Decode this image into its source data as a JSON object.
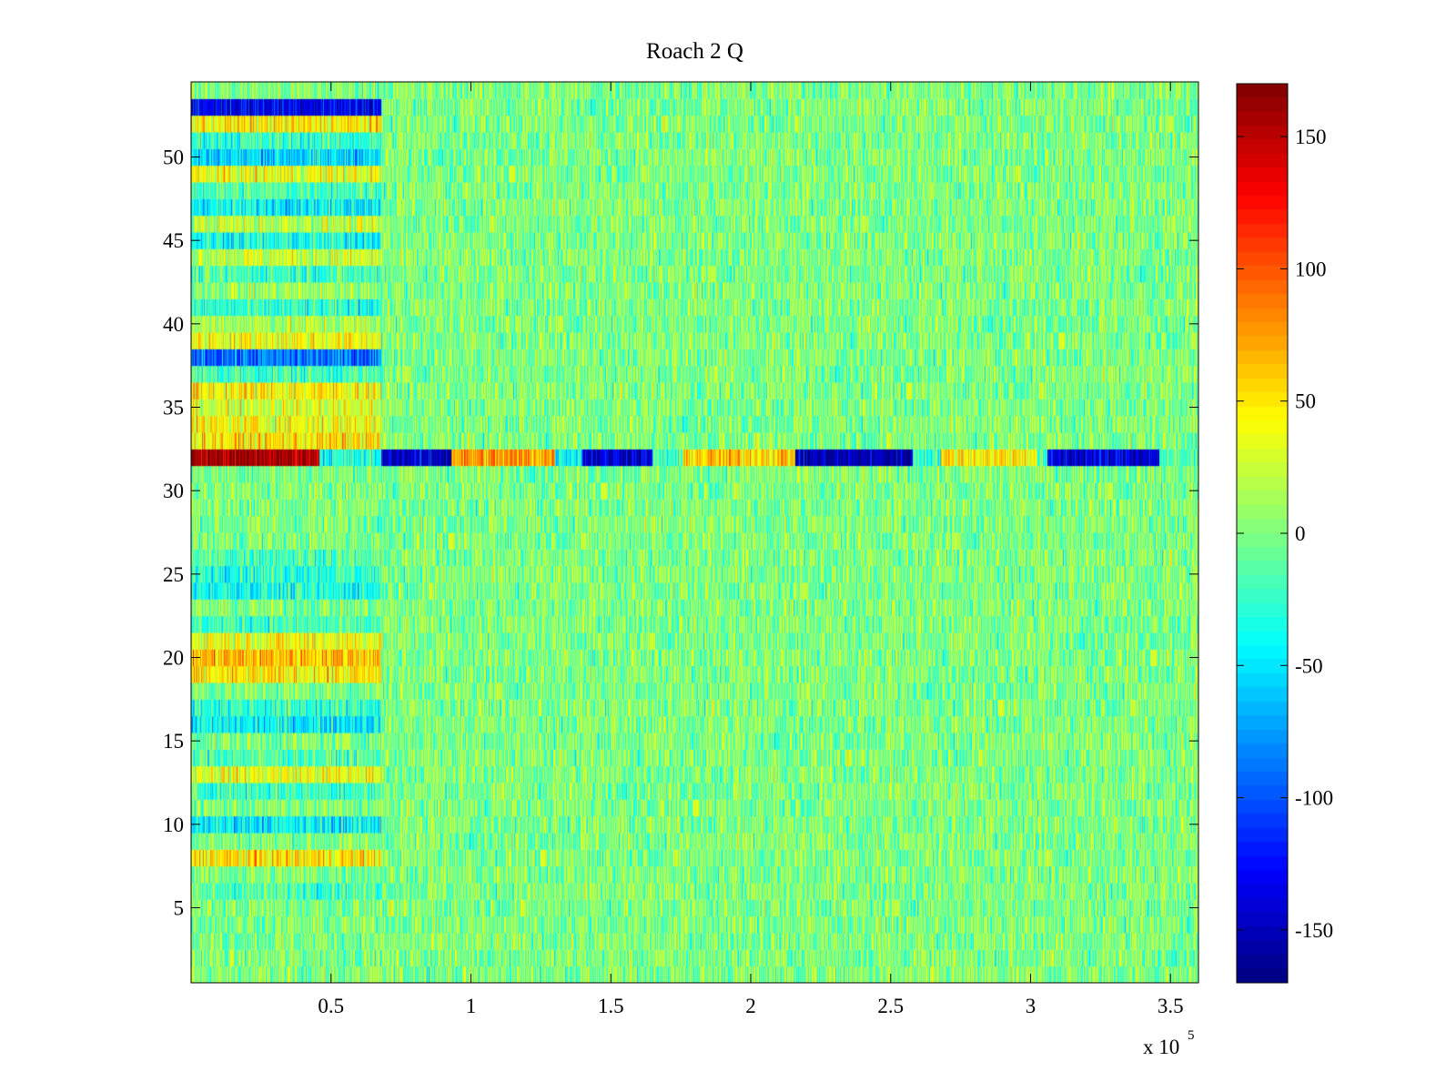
{
  "chart_data": {
    "type": "heatmap",
    "title": "Roach 2 Q",
    "xlabel": "",
    "ylabel": "",
    "colormap": "jet",
    "x_range": [
      0,
      360000
    ],
    "y_range": [
      0.5,
      54.5
    ],
    "clim": [
      -170,
      170
    ],
    "x_exponent_label": "x 10",
    "x_exponent_power": "5",
    "x_ticks": [
      {
        "value": 50000,
        "label": "0.5"
      },
      {
        "value": 100000,
        "label": "1"
      },
      {
        "value": 150000,
        "label": "1.5"
      },
      {
        "value": 200000,
        "label": "2"
      },
      {
        "value": 250000,
        "label": "2.5"
      },
      {
        "value": 300000,
        "label": "3"
      },
      {
        "value": 350000,
        "label": "3.5"
      }
    ],
    "y_ticks": [
      {
        "value": 5,
        "label": "5"
      },
      {
        "value": 10,
        "label": "10"
      },
      {
        "value": 15,
        "label": "15"
      },
      {
        "value": 20,
        "label": "20"
      },
      {
        "value": 25,
        "label": "25"
      },
      {
        "value": 30,
        "label": "30"
      },
      {
        "value": 35,
        "label": "35"
      },
      {
        "value": 40,
        "label": "40"
      },
      {
        "value": 45,
        "label": "45"
      },
      {
        "value": 50,
        "label": "50"
      }
    ],
    "colorbar_ticks": [
      {
        "value": -150,
        "label": "-150"
      },
      {
        "value": -100,
        "label": "-100"
      },
      {
        "value": -50,
        "label": "-50"
      },
      {
        "value": 0,
        "label": "0"
      },
      {
        "value": 50,
        "label": "50"
      },
      {
        "value": 100,
        "label": "100"
      },
      {
        "value": 150,
        "label": "150"
      }
    ],
    "rows": 54,
    "noise_level": 22,
    "initial_segment_end_x": 68000,
    "initial_segment_row_offsets": [
      {
        "row": 53,
        "value": -130
      },
      {
        "row": 52,
        "value": 45
      },
      {
        "row": 51,
        "value": -25
      },
      {
        "row": 50,
        "value": -55
      },
      {
        "row": 49,
        "value": 35
      },
      {
        "row": 48,
        "value": -15
      },
      {
        "row": 47,
        "value": -40
      },
      {
        "row": 46,
        "value": 20
      },
      {
        "row": 45,
        "value": -35
      },
      {
        "row": 44,
        "value": 25
      },
      {
        "row": 43,
        "value": -20
      },
      {
        "row": 42,
        "value": 10
      },
      {
        "row": 41,
        "value": -30
      },
      {
        "row": 40,
        "value": 15
      },
      {
        "row": 39,
        "value": 40
      },
      {
        "row": 38,
        "value": -90
      },
      {
        "row": 37,
        "value": -20
      },
      {
        "row": 36,
        "value": 45
      },
      {
        "row": 35,
        "value": 30
      },
      {
        "row": 34,
        "value": 40
      },
      {
        "row": 33,
        "value": 50
      },
      {
        "row": 26,
        "value": -15
      },
      {
        "row": 25,
        "value": -25
      },
      {
        "row": 24,
        "value": -35
      },
      {
        "row": 22,
        "value": -20
      },
      {
        "row": 21,
        "value": 40
      },
      {
        "row": 20,
        "value": 65
      },
      {
        "row": 19,
        "value": 45
      },
      {
        "row": 17,
        "value": -25
      },
      {
        "row": 16,
        "value": -45
      },
      {
        "row": 14,
        "value": -15
      },
      {
        "row": 13,
        "value": 35
      },
      {
        "row": 12,
        "value": -20
      },
      {
        "row": 10,
        "value": -45
      },
      {
        "row": 8,
        "value": 50
      },
      {
        "row": 6,
        "value": -15
      }
    ],
    "row_32_segments": [
      {
        "x_start": 0,
        "x_end": 46000,
        "value": 160
      },
      {
        "x_start": 46000,
        "x_end": 68000,
        "value": -35
      },
      {
        "x_start": 68000,
        "x_end": 93000,
        "value": -145
      },
      {
        "x_start": 93000,
        "x_end": 130000,
        "value": 75
      },
      {
        "x_start": 130000,
        "x_end": 140000,
        "value": -35
      },
      {
        "x_start": 140000,
        "x_end": 165000,
        "value": -140
      },
      {
        "x_start": 165000,
        "x_end": 176000,
        "value": -25
      },
      {
        "x_start": 176000,
        "x_end": 216000,
        "value": 60
      },
      {
        "x_start": 216000,
        "x_end": 258000,
        "value": -155
      },
      {
        "x_start": 258000,
        "x_end": 268000,
        "value": -20
      },
      {
        "x_start": 268000,
        "x_end": 302000,
        "value": 50
      },
      {
        "x_start": 302000,
        "x_end": 306000,
        "value": -20
      },
      {
        "x_start": 306000,
        "x_end": 346000,
        "value": -140
      },
      {
        "x_start": 346000,
        "x_end": 360000,
        "value": -20
      }
    ]
  }
}
